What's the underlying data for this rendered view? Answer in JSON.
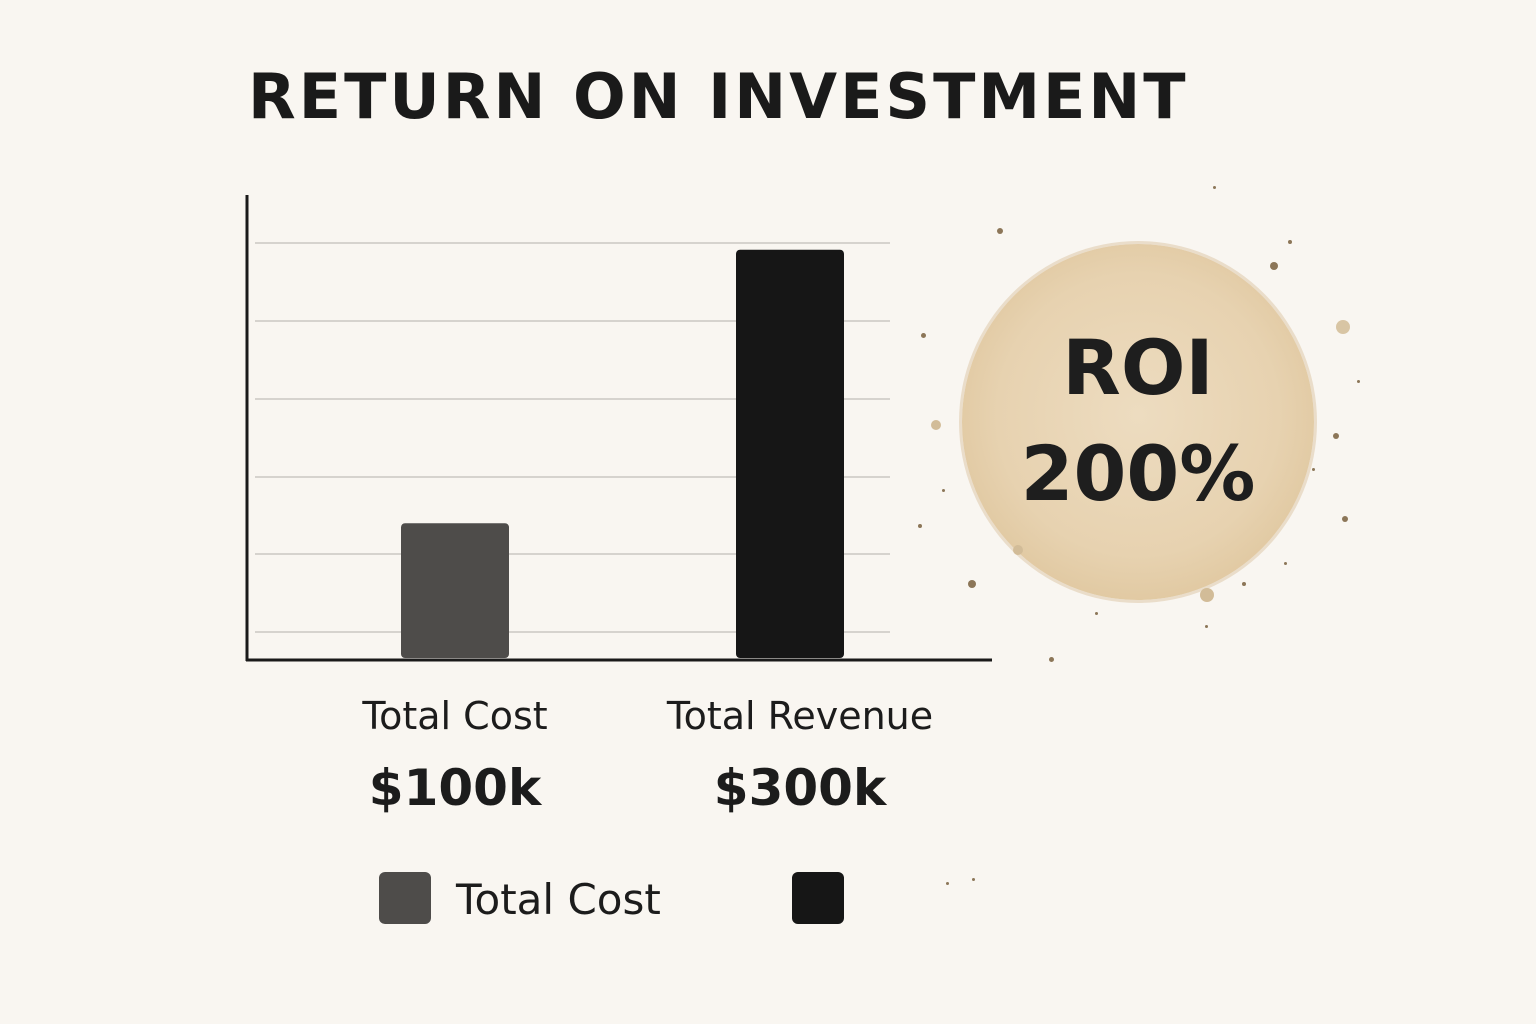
{
  "chart_data": {
    "type": "bar",
    "title": "RETURN ON INVESTMENT",
    "categories": [
      "Total Cost",
      "Total Revenue"
    ],
    "values": [
      100,
      300
    ],
    "value_labels": [
      "$100k",
      "$300k"
    ],
    "bar_colors": [
      "#4e4c4a",
      "#161616"
    ],
    "ylim": [
      0,
      340
    ],
    "grid": true,
    "legend": {
      "placement": "bottom",
      "entries": [
        {
          "label": "Total Cost",
          "color": "#4e4c4a"
        },
        {
          "label": "",
          "color": "#161616"
        }
      ]
    }
  },
  "roi_badge": {
    "label": "ROI",
    "value": "200%",
    "color": "#e8d4b3"
  }
}
